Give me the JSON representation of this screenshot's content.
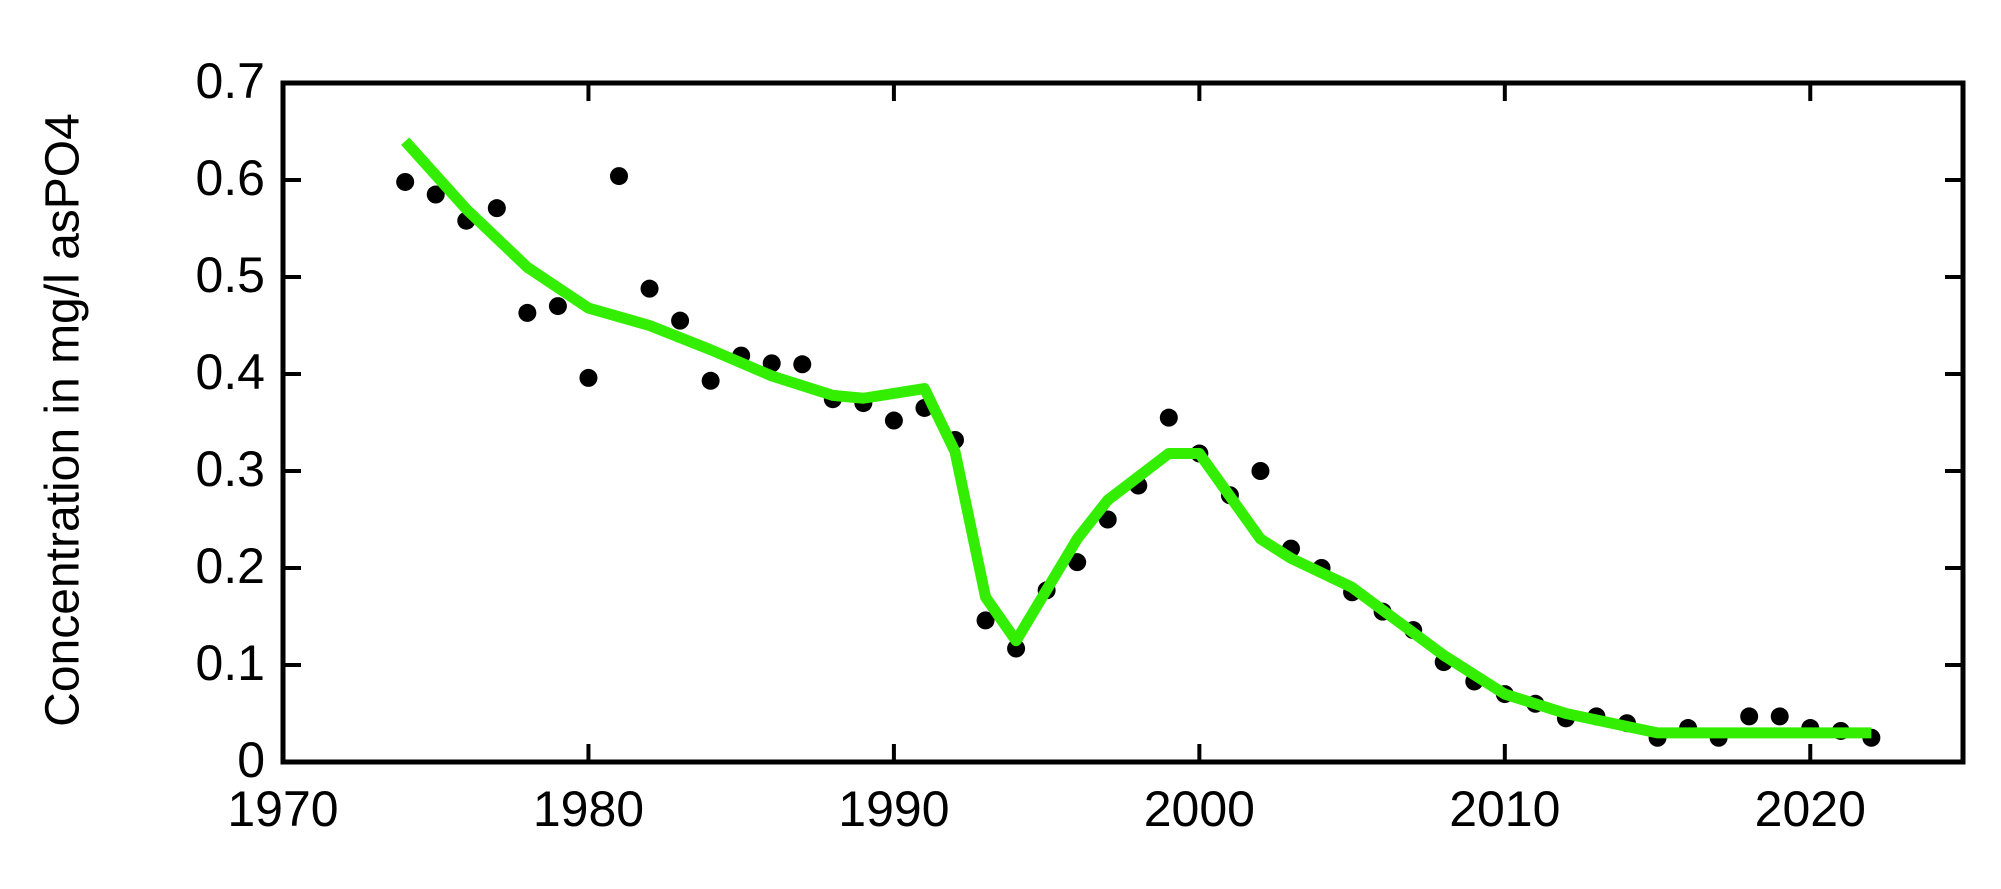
{
  "chart_data": {
    "type": "scatter",
    "ylabel": "Concentration in mg/l asPO4",
    "xlim": [
      1970,
      2025
    ],
    "ylim": [
      0,
      0.7
    ],
    "xticks": [
      1970,
      1980,
      1990,
      2000,
      2010,
      2020
    ],
    "yticks": [
      0,
      0.1,
      0.2,
      0.3,
      0.4,
      0.5,
      0.6,
      0.7
    ],
    "series": [
      {
        "type": "scatter",
        "color": "#000000",
        "x": [
          1974,
          1975,
          1976,
          1977,
          1978,
          1979,
          1980,
          1981,
          1982,
          1983,
          1984,
          1985,
          1986,
          1987,
          1988,
          1989,
          1990,
          1991,
          1992,
          1993,
          1994,
          1995,
          1996,
          1997,
          1998,
          1999,
          2000,
          2001,
          2002,
          2003,
          2004,
          2005,
          2006,
          2007,
          2008,
          2009,
          2010,
          2011,
          2012,
          2013,
          2014,
          2015,
          2016,
          2017,
          2018,
          2019,
          2020,
          2021,
          2022
        ],
        "values": [
          0.598,
          0.585,
          0.558,
          0.571,
          0.463,
          0.47,
          0.396,
          0.604,
          0.488,
          0.455,
          0.393,
          0.419,
          0.411,
          0.41,
          0.374,
          0.37,
          0.352,
          0.365,
          0.332,
          0.146,
          0.117,
          0.177,
          0.206,
          0.25,
          0.285,
          0.355,
          0.318,
          0.275,
          0.3,
          0.22,
          0.2,
          0.175,
          0.155,
          0.136,
          0.103,
          0.083,
          0.07,
          0.06,
          0.045,
          0.047,
          0.04,
          0.025,
          0.035,
          0.025,
          0.047,
          0.047,
          0.035,
          0.032,
          0.025
        ]
      },
      {
        "type": "line",
        "color": "#33ee00",
        "x": [
          1974,
          1976,
          1978,
          1980,
          1982,
          1984,
          1986,
          1988,
          1989,
          1991,
          1992,
          1993,
          1994,
          1996,
          1997,
          1999,
          2000,
          2002,
          2003,
          2005,
          2008,
          2010,
          2012,
          2015,
          2022
        ],
        "values": [
          0.64,
          0.57,
          0.51,
          0.468,
          0.45,
          0.425,
          0.398,
          0.378,
          0.375,
          0.385,
          0.32,
          0.17,
          0.125,
          0.23,
          0.27,
          0.318,
          0.318,
          0.23,
          0.21,
          0.18,
          0.11,
          0.07,
          0.05,
          0.03,
          0.03
        ]
      }
    ]
  }
}
